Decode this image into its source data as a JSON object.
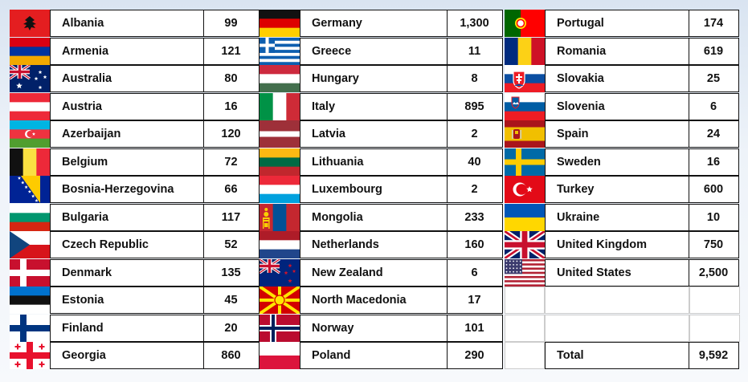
{
  "columns": [
    [
      {
        "country": "Albania",
        "value": "99",
        "flag": "albania-flag"
      },
      {
        "country": "Armenia",
        "value": "121",
        "flag": "armenia-flag"
      },
      {
        "country": "Australia",
        "value": "80",
        "flag": "australia-flag"
      },
      {
        "country": "Austria",
        "value": "16",
        "flag": "austria-flag"
      },
      {
        "country": "Azerbaijan",
        "value": "120",
        "flag": "azerbaijan-flag"
      },
      {
        "country": "Belgium",
        "value": "72",
        "flag": "belgium-flag"
      },
      {
        "country": "Bosnia-Herzegovina",
        "value": "66",
        "flag": "bosnia-herzegovina-flag"
      },
      {
        "country": "Bulgaria",
        "value": "117",
        "flag": "bulgaria-flag"
      },
      {
        "country": "Czech Republic",
        "value": "52",
        "flag": "czech-republic-flag"
      },
      {
        "country": "Denmark",
        "value": "135",
        "flag": "denmark-flag"
      },
      {
        "country": "Estonia",
        "value": "45",
        "flag": "estonia-flag"
      },
      {
        "country": "Finland",
        "value": "20",
        "flag": "finland-flag"
      },
      {
        "country": "Georgia",
        "value": "860",
        "flag": "georgia-flag"
      }
    ],
    [
      {
        "country": "Germany",
        "value": "1,300",
        "flag": "germany-flag"
      },
      {
        "country": "Greece",
        "value": "11",
        "flag": "greece-flag"
      },
      {
        "country": "Hungary",
        "value": "8",
        "flag": "hungary-flag"
      },
      {
        "country": "Italy",
        "value": "895",
        "flag": "italy-flag"
      },
      {
        "country": "Latvia",
        "value": "2",
        "flag": "latvia-flag"
      },
      {
        "country": "Lithuania",
        "value": "40",
        "flag": "lithuania-flag"
      },
      {
        "country": "Luxembourg",
        "value": "2",
        "flag": "luxembourg-flag"
      },
      {
        "country": "Mongolia",
        "value": "233",
        "flag": "mongolia-flag"
      },
      {
        "country": "Netherlands",
        "value": "160",
        "flag": "netherlands-flag"
      },
      {
        "country": "New Zealand",
        "value": "6",
        "flag": "new-zealand-flag"
      },
      {
        "country": "North Macedonia",
        "value": "17",
        "flag": "north-macedonia-flag"
      },
      {
        "country": "Norway",
        "value": "101",
        "flag": "norway-flag"
      },
      {
        "country": "Poland",
        "value": "290",
        "flag": "poland-flag"
      }
    ],
    [
      {
        "country": "Portugal",
        "value": "174",
        "flag": "portugal-flag"
      },
      {
        "country": "Romania",
        "value": "619",
        "flag": "romania-flag"
      },
      {
        "country": "Slovakia",
        "value": "25",
        "flag": "slovakia-flag"
      },
      {
        "country": "Slovenia",
        "value": "6",
        "flag": "slovenia-flag"
      },
      {
        "country": "Spain",
        "value": "24",
        "flag": "spain-flag"
      },
      {
        "country": "Sweden",
        "value": "16",
        "flag": "sweden-flag"
      },
      {
        "country": "Turkey",
        "value": "600",
        "flag": "turkey-flag"
      },
      {
        "country": "Ukraine",
        "value": "10",
        "flag": "ukraine-flag"
      },
      {
        "country": "United Kingdom",
        "value": "750",
        "flag": "united-kingdom-flag"
      },
      {
        "country": "United States",
        "value": "2,500",
        "flag": "united-states-flag"
      }
    ]
  ],
  "total": {
    "label": "Total",
    "value": "9,592"
  }
}
